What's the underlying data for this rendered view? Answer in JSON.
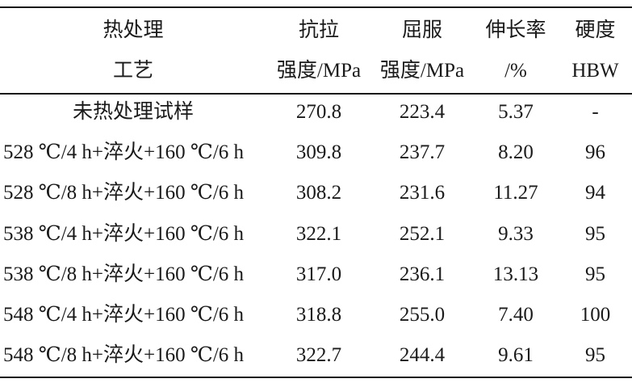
{
  "table": {
    "headers": [
      {
        "line1": "热处理",
        "line2": "工艺"
      },
      {
        "line1": "抗拉",
        "line2": "强度/MPa"
      },
      {
        "line1": "屈服",
        "line2": "强度/MPa"
      },
      {
        "line1": "伸长率",
        "line2": "/%"
      },
      {
        "line1": "硬度",
        "line2": "HBW"
      }
    ],
    "rows": [
      {
        "process": "未热处理试样",
        "tensile": "270.8",
        "yield": "223.4",
        "elongation": "5.37",
        "hardness": "-"
      },
      {
        "process": "528 ℃/4 h+淬火+160 ℃/6 h",
        "tensile": "309.8",
        "yield": "237.7",
        "elongation": "8.20",
        "hardness": "96"
      },
      {
        "process": "528 ℃/8 h+淬火+160 ℃/6 h",
        "tensile": "308.2",
        "yield": "231.6",
        "elongation": "11.27",
        "hardness": "94"
      },
      {
        "process": "538 ℃/4 h+淬火+160 ℃/6 h",
        "tensile": "322.1",
        "yield": "252.1",
        "elongation": "9.33",
        "hardness": "95"
      },
      {
        "process": "538 ℃/8 h+淬火+160 ℃/6 h",
        "tensile": "317.0",
        "yield": "236.1",
        "elongation": "13.13",
        "hardness": "95"
      },
      {
        "process": "548 ℃/4 h+淬火+160 ℃/6 h",
        "tensile": "318.8",
        "yield": "255.0",
        "elongation": "7.40",
        "hardness": "100"
      },
      {
        "process": "548 ℃/8 h+淬火+160 ℃/6 h",
        "tensile": "322.7",
        "yield": "244.4",
        "elongation": "9.61",
        "hardness": "95"
      }
    ]
  }
}
